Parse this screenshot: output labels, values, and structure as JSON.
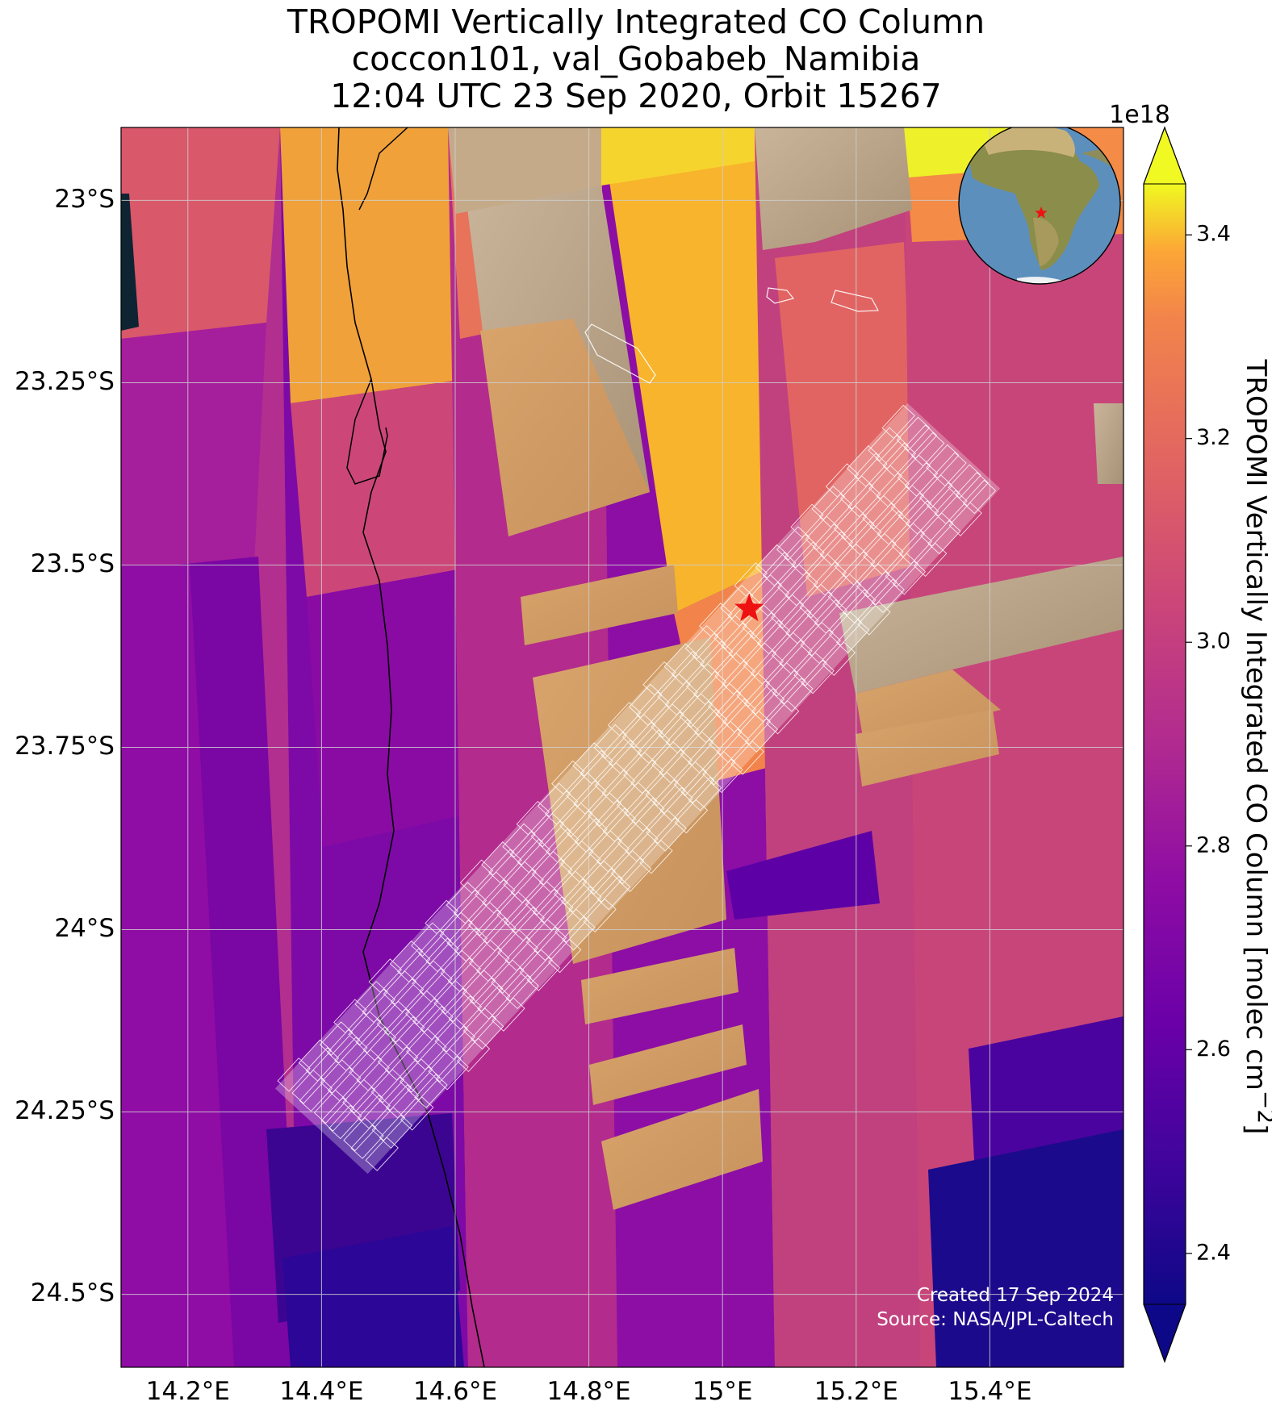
{
  "title": {
    "line1": "TROPOMI Vertically Integrated CO Column",
    "line2": "coccon101, val_Gobabeb_Namibia",
    "line3": "12:04 UTC 23 Sep 2020, Orbit 15267"
  },
  "map": {
    "extent": {
      "lon_min": 14.1,
      "lon_max": 15.6,
      "lat_min": -24.6,
      "lat_max": -22.9
    },
    "gridlines": true,
    "lon_ticks": [
      {
        "value": 14.2,
        "label": "14.2°E"
      },
      {
        "value": 14.4,
        "label": "14.4°E"
      },
      {
        "value": 14.6,
        "label": "14.6°E"
      },
      {
        "value": 14.8,
        "label": "14.8°E"
      },
      {
        "value": 15.0,
        "label": "15°E"
      },
      {
        "value": 15.2,
        "label": "15.2°E"
      },
      {
        "value": 15.4,
        "label": "15.4°E"
      }
    ],
    "lat_ticks": [
      {
        "value": -23.0,
        "label": "23°S"
      },
      {
        "value": -23.25,
        "label": "23.25°S"
      },
      {
        "value": -23.5,
        "label": "23.5°S"
      },
      {
        "value": -23.75,
        "label": "23.75°S"
      },
      {
        "value": -24.0,
        "label": "24°S"
      },
      {
        "value": -24.25,
        "label": "24.25°S"
      },
      {
        "value": -24.5,
        "label": "24.5°S"
      }
    ],
    "station": {
      "lon": 15.04,
      "lat": -23.56,
      "color": "#ee1111",
      "marker": "star-icon"
    },
    "colormap": "plasma",
    "inset_globe": {
      "center": "southern Africa",
      "marker": "star-icon"
    }
  },
  "colorbar": {
    "label_main": "TROPOMI Vertically Integrated CO Column [molec cm",
    "label_exp": "−2",
    "label_end": "]",
    "multiplier": "1e18",
    "min": 2.35,
    "max": 3.45,
    "extend": "both",
    "ticks": [
      {
        "value": 2.4,
        "label": "2.4"
      },
      {
        "value": 2.6,
        "label": "2.6"
      },
      {
        "value": 2.8,
        "label": "2.8"
      },
      {
        "value": 3.0,
        "label": "3.0"
      },
      {
        "value": 3.2,
        "label": "3.2"
      },
      {
        "value": 3.4,
        "label": "3.4"
      }
    ]
  },
  "credit": {
    "created": "Created 17 Sep 2024",
    "source": "Source: NASA/JPL-Caltech"
  }
}
